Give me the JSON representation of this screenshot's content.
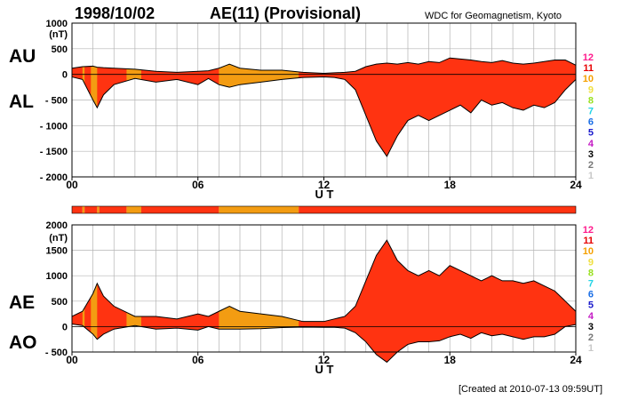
{
  "header": {
    "date": "1998/10/02",
    "title": "AE(11) (Provisional)",
    "source": "WDC for Geomagnetism, Kyoto"
  },
  "footer": {
    "created": "[Created at 2010-07-13 09:59UT]"
  },
  "colors": {
    "high": "#ff3311",
    "mid": "#f39c12",
    "outline": "#000000",
    "grid": "#b4b4b4"
  },
  "legend": [
    {
      "label": "12",
      "color": "#ff1a8c"
    },
    {
      "label": "11",
      "color": "#e60000"
    },
    {
      "label": "10",
      "color": "#f5a000"
    },
    {
      "label": "9",
      "color": "#f0e040"
    },
    {
      "label": "8",
      "color": "#99e020"
    },
    {
      "label": "7",
      "color": "#22d4e6"
    },
    {
      "label": "6",
      "color": "#1a6ee6"
    },
    {
      "label": "5",
      "color": "#1a1acc"
    },
    {
      "label": "4",
      "color": "#c41ac4"
    },
    {
      "label": "3",
      "color": "#000000"
    },
    {
      "label": "2",
      "color": "#777777"
    },
    {
      "label": "1",
      "color": "#c8c8c8"
    }
  ],
  "chart_data": [
    {
      "type": "area",
      "series_labels": [
        "AU",
        "AL"
      ],
      "ylabel_unit": "(nT)",
      "xlabel": "U T",
      "xlim": [
        0,
        24
      ],
      "ylim": [
        -2000,
        1000
      ],
      "grid": true,
      "x_ticks": [
        "00",
        "06",
        "12",
        "18",
        "24"
      ],
      "y_ticks": [
        "1000",
        "500",
        "0",
        "- 500",
        "- 1000",
        "- 1500",
        "- 2000"
      ],
      "x": [
        0,
        0.5,
        1,
        1.2,
        1.5,
        2,
        3,
        4,
        5,
        6,
        6.5,
        7,
        7.5,
        8,
        9,
        10,
        11,
        12,
        12.5,
        13,
        13.5,
        14,
        14.5,
        15,
        15.5,
        16,
        16.5,
        17,
        17.5,
        18,
        18.5,
        19,
        19.5,
        20,
        20.5,
        21,
        21.5,
        22,
        22.5,
        23,
        23.5,
        24
      ],
      "AU": [
        120,
        150,
        160,
        140,
        130,
        120,
        100,
        60,
        40,
        60,
        70,
        120,
        200,
        120,
        80,
        80,
        40,
        20,
        30,
        40,
        60,
        150,
        200,
        220,
        200,
        230,
        200,
        250,
        230,
        320,
        300,
        280,
        250,
        230,
        270,
        220,
        200,
        220,
        250,
        280,
        280,
        180
      ],
      "AL": [
        -50,
        -100,
        -500,
        -650,
        -400,
        -200,
        -80,
        -150,
        -100,
        -200,
        -80,
        -200,
        -250,
        -200,
        -150,
        -100,
        -60,
        -50,
        -60,
        -100,
        -300,
        -800,
        -1300,
        -1600,
        -1200,
        -900,
        -800,
        -900,
        -800,
        -700,
        -600,
        -750,
        -500,
        -600,
        -550,
        -650,
        -700,
        -600,
        -650,
        -550,
        -300,
        -100
      ]
    },
    {
      "type": "area",
      "series_labels": [
        "AE",
        "AO"
      ],
      "ylabel_unit": "(nT)",
      "xlabel": "U T",
      "xlim": [
        0,
        24
      ],
      "ylim": [
        -500,
        2000
      ],
      "grid": true,
      "x_ticks": [
        "00",
        "06",
        "12",
        "18",
        "24"
      ],
      "y_ticks": [
        "2000",
        "1500",
        "1000",
        "500",
        "0",
        "- 500"
      ],
      "x": [
        0,
        0.5,
        1,
        1.2,
        1.5,
        2,
        3,
        4,
        5,
        6,
        6.5,
        7,
        7.5,
        8,
        9,
        10,
        11,
        12,
        12.5,
        13,
        13.5,
        14,
        14.5,
        15,
        15.5,
        16,
        16.5,
        17,
        17.5,
        18,
        18.5,
        19,
        19.5,
        20,
        20.5,
        21,
        21.5,
        22,
        22.5,
        23,
        23.5,
        24
      ],
      "AE": [
        200,
        300,
        650,
        850,
        600,
        400,
        200,
        200,
        150,
        250,
        200,
        300,
        400,
        300,
        250,
        200,
        100,
        100,
        150,
        200,
        400,
        900,
        1400,
        1700,
        1300,
        1100,
        1000,
        1100,
        1000,
        1200,
        1100,
        1000,
        900,
        1000,
        900,
        900,
        850,
        900,
        800,
        700,
        500,
        300
      ],
      "AO": [
        50,
        20,
        -150,
        -250,
        -150,
        -50,
        20,
        -50,
        -30,
        -70,
        0,
        -50,
        -50,
        -50,
        -40,
        -20,
        -10,
        -15,
        -15,
        -30,
        -120,
        -300,
        -550,
        -700,
        -500,
        -350,
        -300,
        -300,
        -280,
        -200,
        -150,
        -230,
        -120,
        -180,
        -150,
        -200,
        -250,
        -200,
        -200,
        -150,
        0,
        40
      ]
    }
  ],
  "station_bar": {
    "segments": [
      {
        "start": 0,
        "end": 0.5,
        "level": "high"
      },
      {
        "start": 0.5,
        "end": 0.6,
        "level": "mid"
      },
      {
        "start": 0.6,
        "end": 1.2,
        "level": "high"
      },
      {
        "start": 1.2,
        "end": 1.3,
        "level": "mid"
      },
      {
        "start": 1.3,
        "end": 2.6,
        "level": "high"
      },
      {
        "start": 2.6,
        "end": 3.3,
        "level": "mid"
      },
      {
        "start": 3.3,
        "end": 7.0,
        "level": "high"
      },
      {
        "start": 7.0,
        "end": 10.8,
        "level": "mid"
      },
      {
        "start": 10.8,
        "end": 24,
        "level": "high"
      }
    ]
  },
  "orange_bands": [
    [
      0.5,
      0.6
    ],
    [
      0.9,
      1.2
    ],
    [
      2.6,
      3.3
    ],
    [
      7.0,
      10.8
    ]
  ]
}
